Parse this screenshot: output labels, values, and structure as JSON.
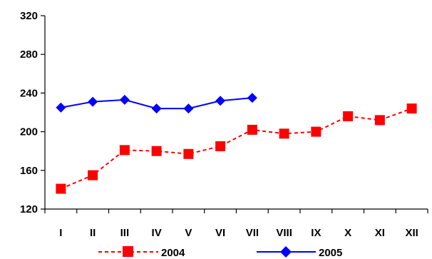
{
  "chart_data": {
    "type": "line",
    "categories": [
      "I",
      "II",
      "III",
      "IV",
      "V",
      "VI",
      "VII",
      "VIII",
      "IX",
      "X",
      "XI",
      "XII"
    ],
    "ylim": [
      120,
      320
    ],
    "yticks": [
      120,
      160,
      200,
      240,
      280,
      320
    ],
    "grid": false,
    "legend_position": "bottom",
    "series": [
      {
        "name": "2004",
        "color": "#ff0000",
        "line_style": "dashed",
        "marker": "square",
        "values": [
          141,
          155,
          181,
          180,
          177,
          185,
          202,
          198,
          200,
          216,
          212,
          224
        ]
      },
      {
        "name": "2005",
        "color": "#0000ff",
        "line_style": "solid",
        "marker": "diamond",
        "values": [
          225,
          231,
          233,
          224,
          224,
          232,
          235,
          null,
          null,
          null,
          null,
          null
        ]
      }
    ]
  }
}
